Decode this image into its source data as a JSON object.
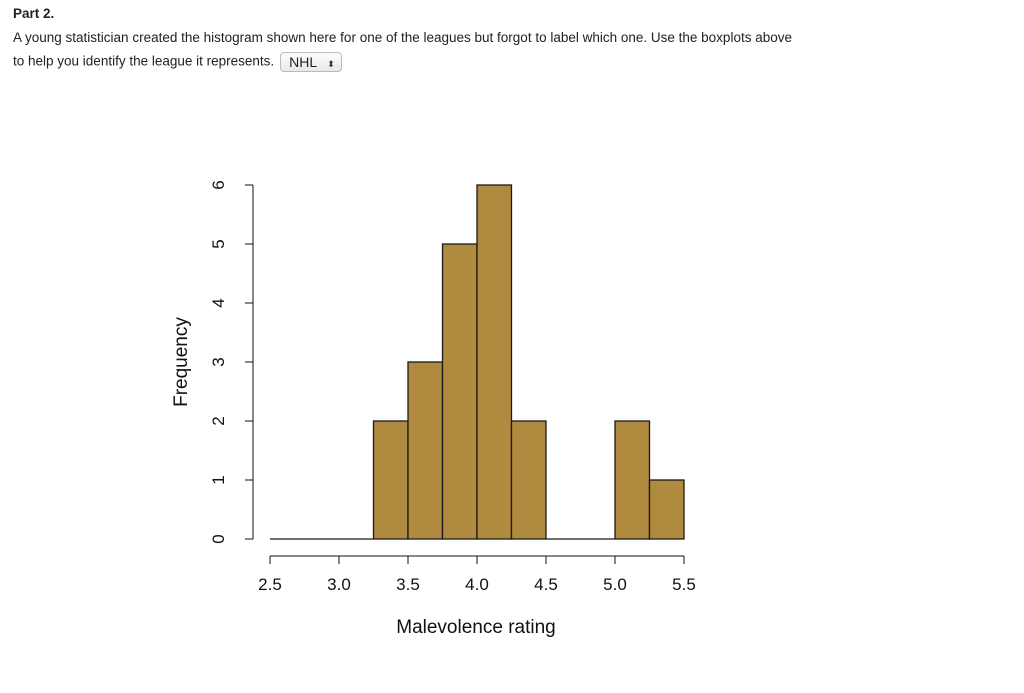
{
  "part_label": "Part 2.",
  "question_line1": "A young statistician created the histogram shown here for one of the leagues but forgot to label which one. Use the boxplots above",
  "question_line2": "to help you identify the league it represents.",
  "league_select": {
    "value": "NHL",
    "icon": "up-down-arrows-icon"
  },
  "chart_data": {
    "type": "bar",
    "subtype": "histogram",
    "bin_edges": [
      2.5,
      2.75,
      3.0,
      3.25,
      3.5,
      3.75,
      4.0,
      4.25,
      4.5,
      4.75,
      5.0,
      5.25,
      5.5
    ],
    "values": [
      0,
      0,
      0,
      2,
      3,
      5,
      6,
      2,
      0,
      0,
      2,
      1
    ],
    "xlabel": "Malevolence rating",
    "ylabel": "Frequency",
    "xticks": [
      "2.5",
      "3.0",
      "3.5",
      "4.0",
      "4.5",
      "5.0",
      "5.5"
    ],
    "yticks": [
      "0",
      "1",
      "2",
      "3",
      "4",
      "5",
      "6"
    ],
    "xlim": [
      2.5,
      5.5
    ],
    "ylim": [
      0,
      6
    ],
    "grid": false,
    "bar_color": "#B08A3E"
  }
}
